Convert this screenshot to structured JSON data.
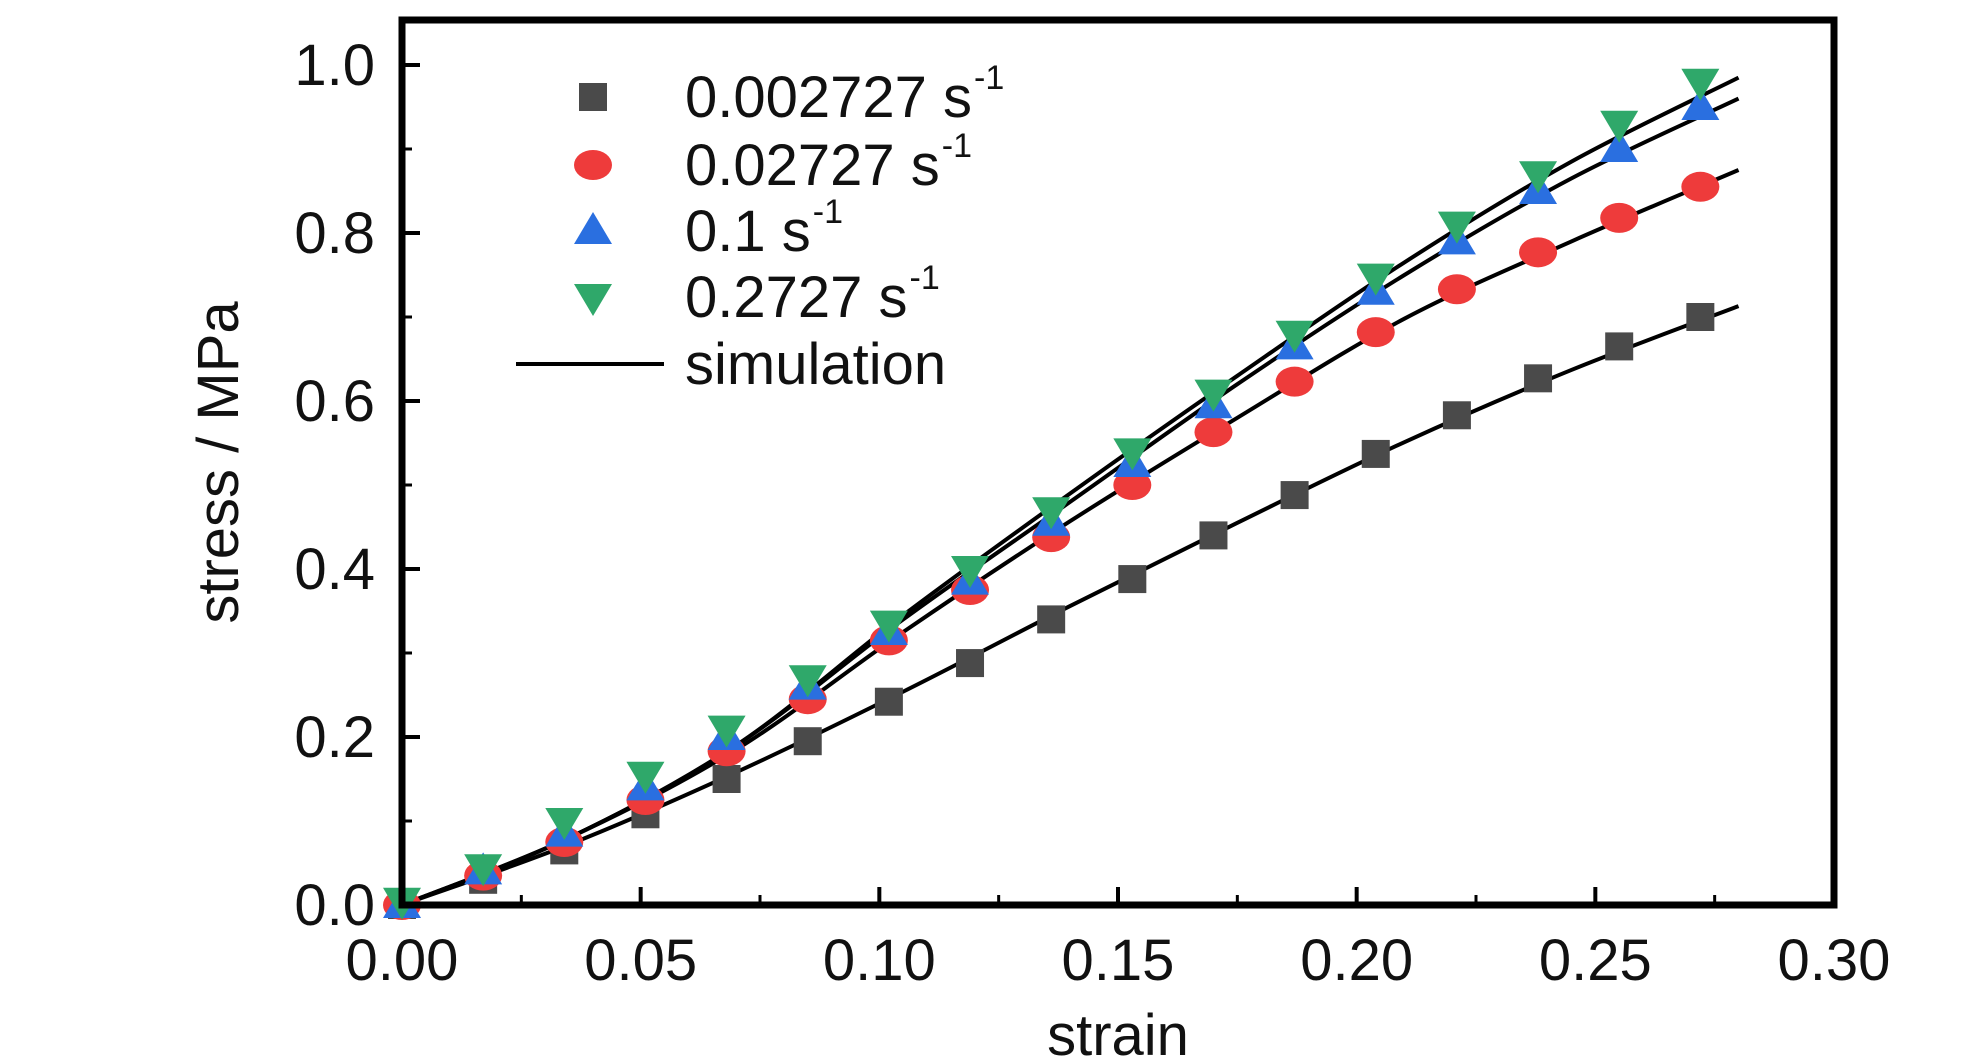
{
  "chart_data": {
    "type": "scatter",
    "xlabel": "strain",
    "ylabel": "stress / MPa",
    "xlim": [
      0,
      0.3
    ],
    "ylim": [
      0,
      1.05
    ],
    "xticks": [
      "0.00",
      "0.05",
      "0.10",
      "0.15",
      "0.20",
      "0.25",
      "0.30"
    ],
    "yticks": [
      "0.0",
      "0.2",
      "0.4",
      "0.6",
      "0.8",
      "1.0"
    ],
    "grid": false,
    "legend_position": "top-left",
    "x": [
      0,
      0.017,
      0.034,
      0.051,
      0.068,
      0.085,
      0.102,
      0.119,
      0.136,
      0.153,
      0.17,
      0.187,
      0.204,
      0.221,
      0.238,
      0.255,
      0.272
    ],
    "series": [
      {
        "name": "0.002727 s",
        "unit_sup": "-1",
        "marker": "square",
        "color": "#4a4a4a",
        "values": [
          0.0,
          0.03,
          0.065,
          0.108,
          0.15,
          0.195,
          0.242,
          0.288,
          0.34,
          0.388,
          0.44,
          0.488,
          0.537,
          0.583,
          0.627,
          0.665,
          0.7
        ]
      },
      {
        "name": "0.02727 s",
        "unit_sup": "-1",
        "marker": "circle",
        "color": "#ee3b3b",
        "values": [
          0.0,
          0.035,
          0.075,
          0.125,
          0.183,
          0.245,
          0.315,
          0.375,
          0.438,
          0.5,
          0.563,
          0.623,
          0.682,
          0.733,
          0.777,
          0.818,
          0.855
        ]
      },
      {
        "name": "0.1 s",
        "unit_sup": "-1",
        "marker": "triangle-up",
        "color": "#2a6fe0",
        "values": [
          0.0,
          0.04,
          0.085,
          0.14,
          0.2,
          0.26,
          0.325,
          0.385,
          0.455,
          0.525,
          0.595,
          0.665,
          0.73,
          0.79,
          0.85,
          0.9,
          0.95
        ]
      },
      {
        "name": "0.2727 s",
        "unit_sup": "-1",
        "marker": "triangle-down",
        "color": "#2fa86a",
        "values": [
          0.005,
          0.045,
          0.1,
          0.155,
          0.21,
          0.27,
          0.335,
          0.4,
          0.47,
          0.54,
          0.61,
          0.68,
          0.748,
          0.81,
          0.87,
          0.93,
          0.98
        ]
      }
    ],
    "simulation": {
      "name": "simulation",
      "color": "#000000",
      "x": [
        0,
        0.035,
        0.07,
        0.105,
        0.14,
        0.175,
        0.21,
        0.245,
        0.28
      ],
      "curves": [
        [
          0.0,
          0.072,
          0.158,
          0.254,
          0.356,
          0.455,
          0.551,
          0.637,
          0.713
        ],
        [
          0.0,
          0.08,
          0.185,
          0.325,
          0.457,
          0.58,
          0.698,
          0.79,
          0.875
        ],
        [
          0.0,
          0.08,
          0.19,
          0.34,
          0.48,
          0.62,
          0.75,
          0.865,
          0.96
        ],
        [
          0.0,
          0.08,
          0.19,
          0.345,
          0.49,
          0.63,
          0.765,
          0.885,
          0.985
        ]
      ]
    }
  }
}
